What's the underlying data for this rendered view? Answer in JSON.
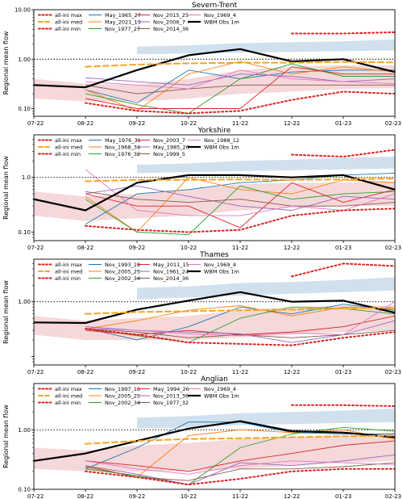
{
  "figure": {
    "ylabel": "Regional mean flow",
    "x_ticks": [
      "07-22",
      "08-22",
      "09-22",
      "10-22",
      "11-22",
      "12-22",
      "01-23",
      "02-23"
    ],
    "y_ticks": [
      "0.10",
      "1.00",
      "10.00"
    ]
  },
  "colors": {
    "band_blue": "#b9cfe4",
    "band_red": "#efc3c6",
    "ini_max": "#e02020",
    "ini_med": "#f5a623",
    "ini_min": "#e02020",
    "obs": "#000000",
    "palette": [
      "#1f77b4",
      "#ff7f0e",
      "#2ca02c",
      "#d62728",
      "#9467bd",
      "#8c564b",
      "#e377c2"
    ]
  },
  "chart_data": [
    {
      "type": "line",
      "title": "Severn-Trent",
      "xlabel": "",
      "ylabel": "Regional mean flow",
      "y_scale": "log",
      "ylim": [
        0.07,
        10
      ],
      "categories": [
        "07-22",
        "08-22",
        "09-22",
        "10-22",
        "11-22",
        "12-22",
        "01-23",
        "02-23"
      ],
      "y_ticks": [
        "0.10",
        "1.00",
        "10.00"
      ],
      "show_top_tick": true,
      "reference_line": 1.0,
      "legend": {
        "placement": "top-left",
        "columns": 3
      },
      "bands": {
        "blue_upper": [
          null,
          null,
          1.8,
          1.9,
          2.1,
          2.2,
          2.3,
          2.5
        ],
        "blue_lower": [
          null,
          null,
          1.25,
          1.3,
          1.35,
          1.4,
          1.45,
          1.5
        ],
        "red_upper": [
          0.4,
          0.32,
          0.3,
          0.4,
          0.6,
          0.7,
          0.75,
          0.75
        ],
        "red_lower": [
          0.16,
          0.14,
          0.14,
          0.16,
          0.2,
          0.22,
          0.25,
          0.26
        ]
      },
      "ensemble_stats": [
        {
          "name": "all-ini max",
          "style": "dotted",
          "color": "#e02020",
          "values": [
            null,
            null,
            null,
            null,
            null,
            3.3,
            3.3,
            3.5
          ]
        },
        {
          "name": "all-ini med",
          "style": "dashed",
          "color": "#f5a623",
          "values": [
            null,
            0.7,
            0.78,
            0.82,
            0.85,
            0.85,
            0.88,
            0.86
          ]
        },
        {
          "name": "all-ini min",
          "style": "dotted",
          "color": "#e02020",
          "values": [
            null,
            0.13,
            0.09,
            0.08,
            0.09,
            0.15,
            0.22,
            0.2
          ]
        }
      ],
      "series": [
        {
          "name": "May_1965_27",
          "color": "#1f77b4",
          "values": [
            null,
            0.24,
            0.13,
            0.6,
            0.4,
            0.55,
            0.6,
            0.6
          ]
        },
        {
          "name": "May_2021_13",
          "color": "#ff7f0e",
          "values": [
            null,
            0.24,
            0.09,
            0.5,
            0.9,
            0.5,
            0.7,
            0.55
          ]
        },
        {
          "name": "Nov_1977_27",
          "color": "#2ca02c",
          "values": [
            null,
            0.2,
            0.12,
            0.08,
            0.4,
            0.8,
            0.45,
            0.45
          ]
        },
        {
          "name": "Nov_2015_25",
          "color": "#d62728",
          "values": [
            null,
            0.16,
            0.1,
            0.1,
            0.1,
            0.7,
            0.5,
            0.5
          ]
        },
        {
          "name": "Nov_2006_7",
          "color": "#9467bd",
          "values": [
            null,
            0.42,
            0.35,
            0.3,
            0.5,
            0.45,
            0.35,
            0.4
          ]
        },
        {
          "name": "Nov_2014_36",
          "color": "#8c564b",
          "values": [
            null,
            0.3,
            0.2,
            0.25,
            0.3,
            0.3,
            0.3,
            0.3
          ]
        },
        {
          "name": "Nov_1969_4",
          "color": "#e377c2",
          "values": [
            null,
            0.35,
            0.3,
            0.25,
            0.6,
            0.4,
            0.35,
            0.32
          ]
        },
        {
          "name": "WBM Obs 1m",
          "color": "#000000",
          "width": 2.2,
          "values": [
            0.3,
            0.27,
            0.6,
            1.2,
            1.6,
            0.9,
            1.0,
            0.55
          ]
        }
      ]
    },
    {
      "type": "line",
      "title": "Yorkshire",
      "xlabel": "",
      "ylabel": "Regional mean flow",
      "y_scale": "log",
      "ylim": [
        0.07,
        6
      ],
      "categories": [
        "07-22",
        "08-22",
        "09-22",
        "10-22",
        "11-22",
        "12-22",
        "01-23",
        "02-23"
      ],
      "y_ticks": [
        "0.10",
        "1.0"
      ],
      "show_top_tick": false,
      "reference_line": 1.0,
      "legend": {
        "placement": "top-left",
        "columns": 3
      },
      "bands": {
        "blue_upper": [
          null,
          null,
          1.7,
          1.8,
          2.0,
          2.1,
          2.3,
          2.4
        ],
        "blue_lower": [
          null,
          null,
          1.2,
          1.25,
          1.3,
          1.35,
          1.4,
          1.45
        ],
        "red_upper": [
          0.55,
          0.45,
          0.5,
          0.6,
          0.75,
          0.8,
          0.8,
          0.85
        ],
        "red_lower": [
          0.2,
          0.16,
          0.18,
          0.2,
          0.25,
          0.28,
          0.3,
          0.3
        ]
      },
      "ensemble_stats": [
        {
          "name": "all-ini max",
          "style": "dotted",
          "color": "#e02020",
          "values": [
            null,
            null,
            null,
            null,
            null,
            2.6,
            2.4,
            3.2
          ]
        },
        {
          "name": "all-ini med",
          "style": "dashed",
          "color": "#f5a623",
          "values": [
            null,
            0.85,
            0.9,
            0.9,
            0.92,
            0.9,
            0.92,
            0.95
          ]
        },
        {
          "name": "all-ini min",
          "style": "dotted",
          "color": "#e02020",
          "values": [
            null,
            0.13,
            0.11,
            0.1,
            0.11,
            0.2,
            0.25,
            0.27
          ]
        }
      ],
      "series": [
        {
          "name": "May_1976_31",
          "color": "#1f77b4",
          "values": [
            null,
            0.14,
            0.5,
            0.6,
            0.8,
            0.9,
            1.1,
            1.2
          ]
        },
        {
          "name": "Nov_1968_34",
          "color": "#ff7f0e",
          "values": [
            null,
            0.45,
            0.1,
            1.0,
            0.6,
            0.5,
            0.9,
            0.8
          ]
        },
        {
          "name": "Nov_1976_32",
          "color": "#2ca02c",
          "values": [
            null,
            0.4,
            0.1,
            0.09,
            0.7,
            0.4,
            0.5,
            0.55
          ]
        },
        {
          "name": "Nov_2003_7",
          "color": "#d62728",
          "values": [
            null,
            0.5,
            0.3,
            0.3,
            0.12,
            0.8,
            0.35,
            0.6
          ]
        },
        {
          "name": "May_1985_26",
          "color": "#9467bd",
          "values": [
            null,
            0.5,
            0.7,
            0.45,
            0.3,
            0.25,
            0.45,
            0.4
          ]
        },
        {
          "name": "Nov_1999_5",
          "color": "#8c564b",
          "values": [
            null,
            0.55,
            0.4,
            0.35,
            0.4,
            0.3,
            0.3,
            0.35
          ]
        },
        {
          "name": "Nov_1988_12",
          "color": "#e377c2",
          "values": [
            null,
            1.4,
            0.25,
            0.2,
            0.2,
            0.3,
            0.25,
            0.5
          ]
        },
        {
          "name": "WBM Obs 1m",
          "color": "#000000",
          "width": 2.2,
          "values": [
            0.4,
            0.25,
            0.8,
            1.1,
            1.1,
            1.0,
            1.1,
            0.6
          ]
        }
      ]
    },
    {
      "type": "line",
      "title": "Thames",
      "xlabel": "",
      "ylabel": "Regional mean flow",
      "y_scale": "log",
      "ylim": [
        0.07,
        6
      ],
      "categories": [
        "07-22",
        "08-22",
        "09-22",
        "10-22",
        "11-22",
        "12-22",
        "01-23",
        "02-23"
      ],
      "y_ticks": [
        "1.00"
      ],
      "show_top_tick": false,
      "reference_line": 1.0,
      "legend": {
        "placement": "top-left",
        "columns": 3
      },
      "bands": {
        "blue_upper": [
          null,
          null,
          1.8,
          1.9,
          2.2,
          2.3,
          2.5,
          2.8
        ],
        "blue_lower": [
          null,
          null,
          1.1,
          1.2,
          1.3,
          1.4,
          1.5,
          1.6
        ],
        "red_upper": [
          0.55,
          0.45,
          0.5,
          0.55,
          0.7,
          0.8,
          0.85,
          0.85
        ],
        "red_lower": [
          0.25,
          0.2,
          0.2,
          0.2,
          0.22,
          0.25,
          0.28,
          0.3
        ]
      },
      "ensemble_stats": [
        {
          "name": "all-ini max",
          "style": "dotted",
          "color": "#e02020",
          "values": [
            null,
            null,
            null,
            null,
            null,
            2.9,
            5.0,
            4.5
          ]
        },
        {
          "name": "all-ini med",
          "style": "dashed",
          "color": "#f5a623",
          "values": [
            null,
            0.6,
            0.65,
            0.67,
            0.7,
            0.72,
            0.75,
            0.78
          ]
        },
        {
          "name": "all-ini min",
          "style": "dotted",
          "color": "#e02020",
          "values": [
            null,
            0.32,
            0.25,
            0.18,
            0.17,
            0.16,
            0.22,
            0.28
          ]
        }
      ],
      "series": [
        {
          "name": "Nov_1993_19",
          "color": "#1f77b4",
          "values": [
            null,
            0.33,
            0.2,
            0.35,
            0.8,
            0.6,
            0.9,
            0.7
          ]
        },
        {
          "name": "Nov_2005_25",
          "color": "#ff7f0e",
          "values": [
            null,
            0.32,
            0.45,
            0.7,
            0.85,
            0.55,
            0.8,
            0.75
          ]
        },
        {
          "name": "Nov_2002_34",
          "color": "#2ca02c",
          "values": [
            null,
            0.32,
            0.24,
            0.18,
            0.5,
            0.8,
            0.75,
            0.6
          ]
        },
        {
          "name": "May_2011_15",
          "color": "#d62728",
          "values": [
            null,
            0.3,
            0.25,
            0.3,
            0.25,
            0.28,
            0.35,
            0.55
          ]
        },
        {
          "name": "Nov_1961_24",
          "color": "#9467bd",
          "values": [
            null,
            0.35,
            0.3,
            0.28,
            0.26,
            0.18,
            0.25,
            0.45
          ]
        },
        {
          "name": "Nov_2014_36",
          "color": "#8c564b",
          "values": [
            null,
            0.32,
            0.28,
            0.22,
            0.25,
            0.22,
            0.25,
            0.3
          ]
        },
        {
          "name": "Nov_1969_4",
          "color": "#e377c2",
          "values": [
            null,
            0.33,
            0.3,
            0.26,
            0.24,
            0.27,
            0.25,
            1.0
          ]
        },
        {
          "name": "WBM Obs 1m",
          "color": "#000000",
          "width": 2.2,
          "values": [
            0.42,
            0.41,
            0.72,
            1.05,
            1.5,
            1.0,
            1.05,
            0.63
          ]
        }
      ]
    },
    {
      "type": "line",
      "title": "Anglian",
      "xlabel": "",
      "ylabel": "Regional mean flow",
      "y_scale": "log",
      "ylim": [
        0.1,
        6
      ],
      "categories": [
        "07-22",
        "08-22",
        "09-22",
        "10-22",
        "11-22",
        "12-22",
        "01-23",
        "02-23"
      ],
      "y_ticks": [
        "0.10",
        "1.00"
      ],
      "show_top_tick": false,
      "reference_line": 1.0,
      "legend": {
        "placement": "top-left",
        "columns": 3
      },
      "bands": {
        "blue_upper": [
          null,
          null,
          1.6,
          1.7,
          1.9,
          2.0,
          2.1,
          2.3
        ],
        "blue_lower": [
          null,
          null,
          1.05,
          1.1,
          1.2,
          1.25,
          1.3,
          1.35
        ],
        "red_upper": [
          0.5,
          0.45,
          0.55,
          0.6,
          0.7,
          0.75,
          0.8,
          0.85
        ],
        "red_lower": [
          0.22,
          0.2,
          0.2,
          0.2,
          0.22,
          0.25,
          0.28,
          0.3
        ]
      },
      "ensemble_stats": [
        {
          "name": "all-ini max",
          "style": "dotted",
          "color": "#e02020",
          "values": [
            null,
            null,
            null,
            null,
            null,
            2.6,
            2.6,
            2.5
          ]
        },
        {
          "name": "all-ini med",
          "style": "dashed",
          "color": "#f5a623",
          "values": [
            null,
            0.58,
            0.65,
            0.7,
            0.72,
            0.75,
            0.78,
            0.8
          ]
        },
        {
          "name": "all-ini min",
          "style": "dotted",
          "color": "#e02020",
          "values": [
            null,
            0.2,
            0.16,
            0.12,
            0.15,
            0.2,
            0.22,
            0.22
          ]
        }
      ],
      "series": [
        {
          "name": "Nov_1997_16",
          "color": "#1f77b4",
          "values": [
            null,
            0.22,
            0.5,
            1.35,
            1.35,
            0.9,
            0.85,
            0.85
          ]
        },
        {
          "name": "Nov_2005_25",
          "color": "#ff7f0e",
          "values": [
            null,
            0.25,
            0.16,
            0.8,
            1.0,
            0.9,
            1.0,
            0.7
          ]
        },
        {
          "name": "Nov_2002_34",
          "color": "#2ca02c",
          "values": [
            null,
            0.22,
            0.17,
            0.12,
            0.5,
            0.85,
            1.1,
            0.95
          ]
        },
        {
          "name": "May_1994_26",
          "color": "#d62728",
          "values": [
            null,
            0.3,
            0.25,
            0.2,
            0.3,
            0.4,
            0.55,
            0.65
          ]
        },
        {
          "name": "Nov_2013_36",
          "color": "#9467bd",
          "values": [
            null,
            0.25,
            0.18,
            0.12,
            0.28,
            0.25,
            0.3,
            0.38
          ]
        },
        {
          "name": "Nov_1977_32",
          "color": "#8c564b",
          "values": [
            null,
            0.24,
            0.16,
            0.14,
            0.22,
            0.22,
            0.24,
            0.28
          ]
        },
        {
          "name": "Nov_1969_4",
          "color": "#e377c2",
          "values": [
            null,
            0.3,
            0.22,
            0.18,
            0.25,
            0.3,
            0.28,
            0.26
          ]
        },
        {
          "name": "WBM Obs 1m",
          "color": "#000000",
          "width": 2.2,
          "values": [
            0.3,
            0.4,
            0.65,
            1.05,
            1.4,
            0.95,
            0.9,
            0.75
          ]
        }
      ]
    }
  ]
}
